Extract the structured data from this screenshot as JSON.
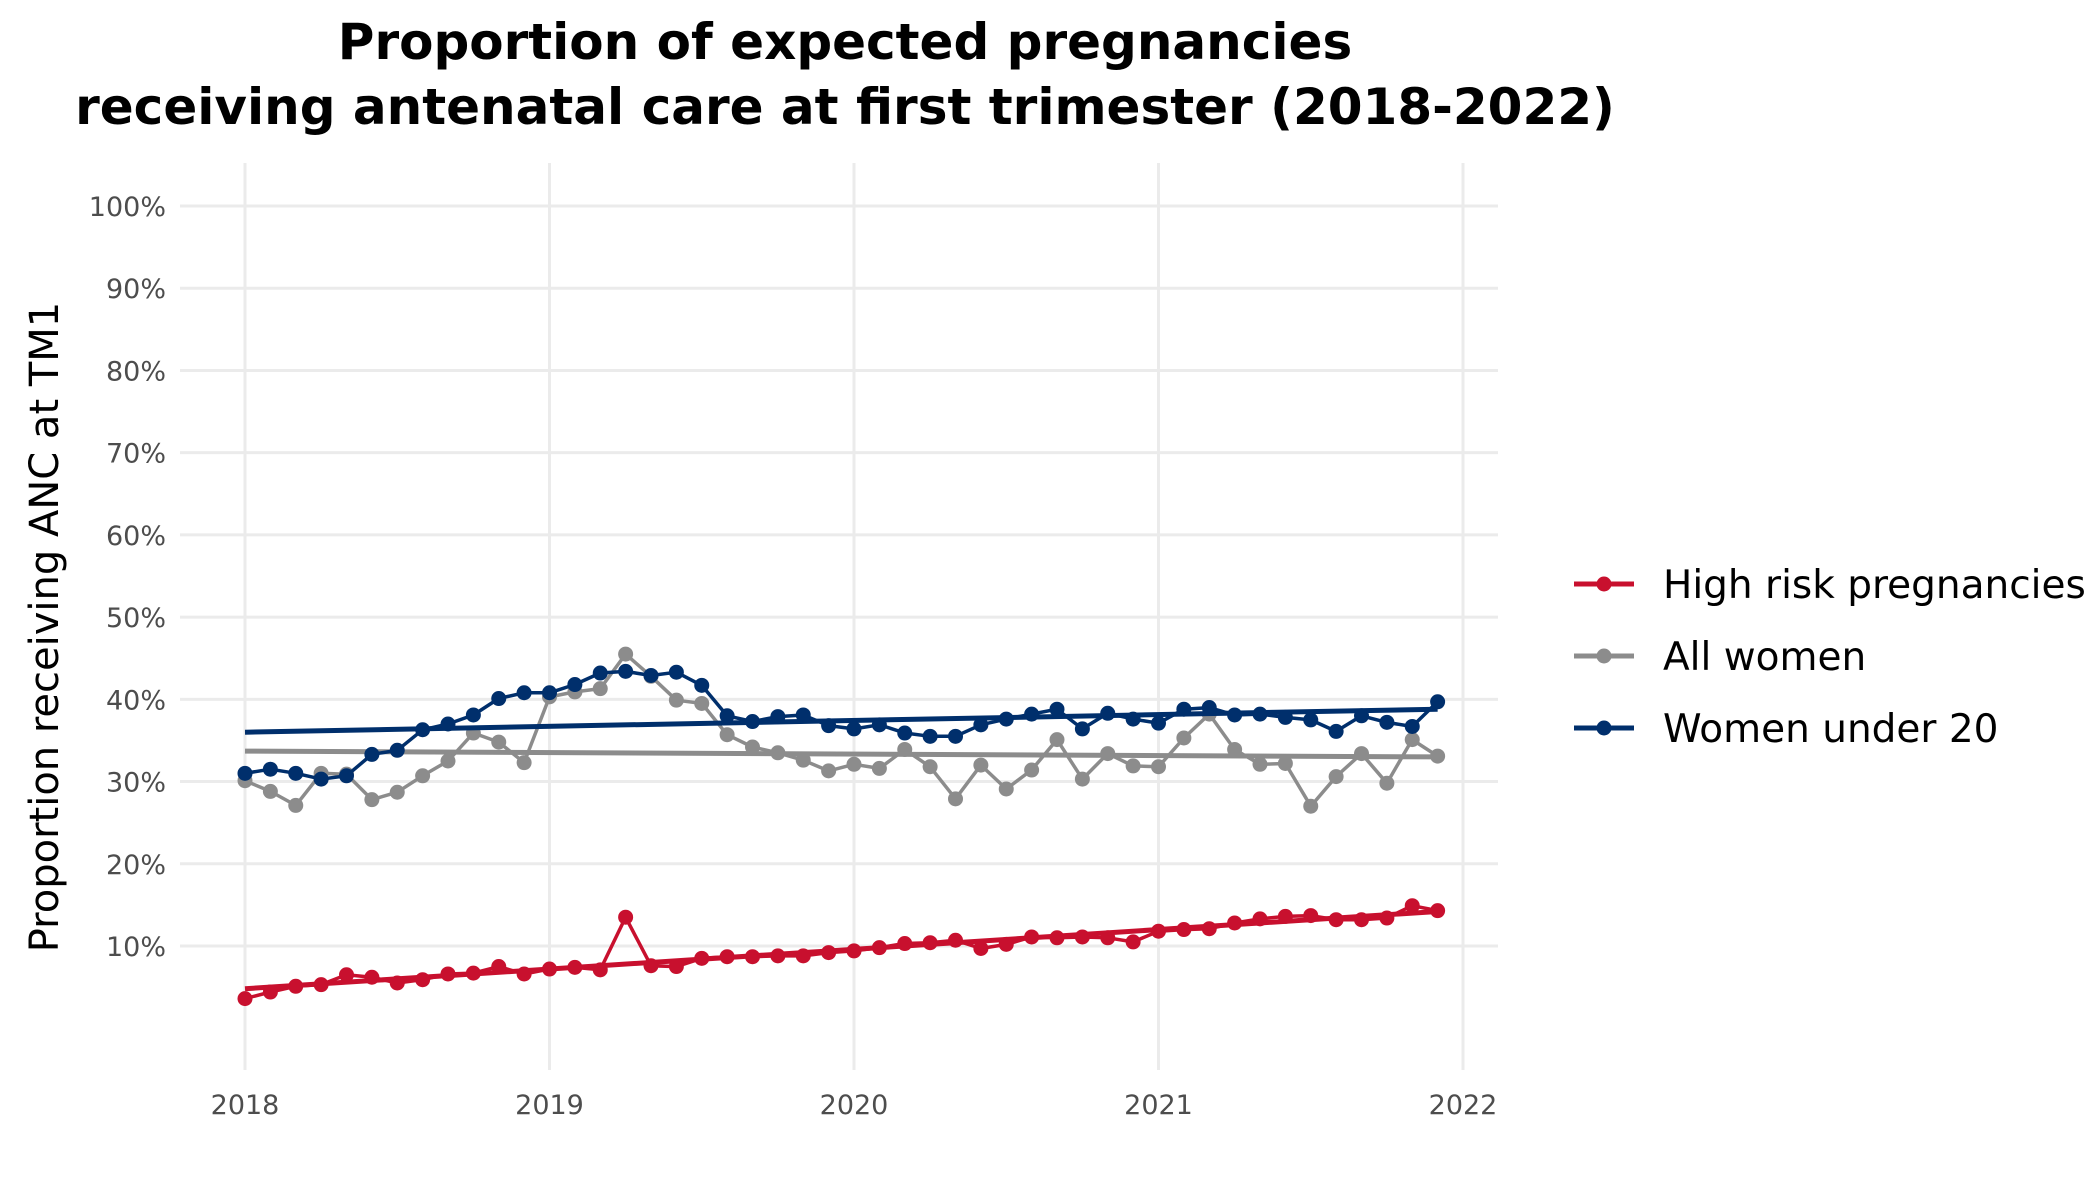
{
  "chart_data": {
    "type": "line",
    "title_line1": "Proportion of expected pregnancies",
    "title_line2": "receiving antenatal care at first trimester (2018-2022)",
    "xlabel": "",
    "ylabel": "Proportion receiving ANC at TM1",
    "xlim": [
      2018,
      2022
    ],
    "ylim": [
      0,
      100
    ],
    "x_ticks": [
      "2018",
      "2019",
      "2020",
      "2021",
      "2022"
    ],
    "y_ticks": [
      "10%",
      "20%",
      "30%",
      "40%",
      "50%",
      "60%",
      "70%",
      "80%",
      "90%",
      "100%"
    ],
    "grid": true,
    "legend_position": "right",
    "series": [
      {
        "name": "High risk pregnancies",
        "color": "#c8102e",
        "values": [
          3.6,
          4.4,
          5.1,
          5.3,
          6.5,
          6.2,
          5.5,
          5.9,
          6.6,
          6.7,
          7.5,
          6.6,
          7.2,
          7.4,
          7.1,
          13.5,
          7.6,
          7.5,
          8.5,
          8.7,
          8.7,
          8.8,
          8.8,
          9.2,
          9.4,
          9.8,
          10.3,
          10.4,
          10.7,
          9.7,
          10.2,
          11.1,
          11.0,
          11.1,
          11.0,
          10.5,
          11.8,
          12.0,
          12.1,
          12.8,
          13.3,
          13.6,
          13.7,
          13.2,
          13.2,
          13.4,
          14.9,
          14.3
        ],
        "trend": [
          4.8,
          14.2
        ]
      },
      {
        "name": "All women",
        "color": "#8c8c8c",
        "values": [
          30.1,
          28.8,
          27.1,
          31.0,
          30.9,
          27.8,
          28.7,
          30.7,
          32.5,
          35.9,
          34.8,
          32.3,
          40.3,
          40.9,
          41.3,
          45.5,
          42.8,
          39.9,
          39.5,
          35.7,
          34.2,
          33.5,
          32.6,
          31.3,
          32.1,
          31.6,
          33.9,
          31.8,
          27.9,
          32.0,
          29.1,
          31.4,
          35.1,
          30.3,
          33.4,
          31.9,
          31.8,
          35.3,
          38.2,
          33.9,
          32.1,
          32.2,
          27.0,
          30.6,
          33.4,
          29.8,
          35.1,
          33.1
        ],
        "trend": [
          33.7,
          33.0
        ]
      },
      {
        "name": "Women under 20",
        "color": "#002f6c",
        "values": [
          31.0,
          31.5,
          31.0,
          30.3,
          30.7,
          33.3,
          33.8,
          36.3,
          37.0,
          38.1,
          40.1,
          40.8,
          40.8,
          41.8,
          43.2,
          43.4,
          42.9,
          43.3,
          41.7,
          38.0,
          37.3,
          37.9,
          38.1,
          36.8,
          36.4,
          36.9,
          35.9,
          35.5,
          35.5,
          36.9,
          37.6,
          38.2,
          38.8,
          36.4,
          38.3,
          37.6,
          37.1,
          38.8,
          39.0,
          38.1,
          38.2,
          37.8,
          37.5,
          36.1,
          38.0,
          37.2,
          36.7,
          39.7
        ],
        "trend": [
          36.0,
          38.8
        ]
      }
    ]
  }
}
